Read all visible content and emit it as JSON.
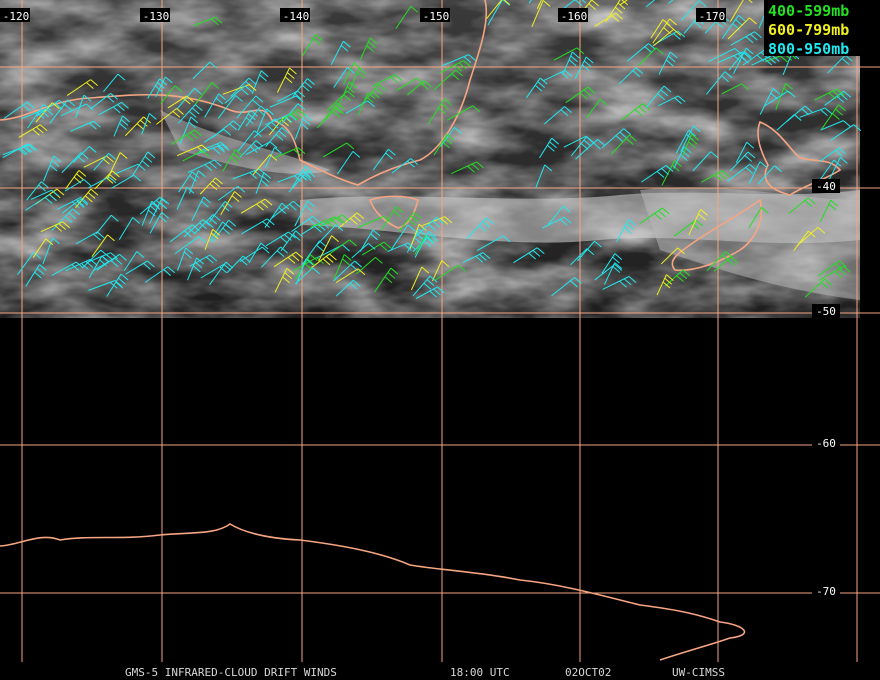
{
  "map": {
    "longitude_labels": [
      "-120",
      "-130",
      "-140",
      "-150",
      "-160",
      "-170"
    ],
    "latitude_labels": [
      "-40",
      "-50",
      "-60",
      "-70"
    ],
    "legend": [
      {
        "label": "400-599mb",
        "color": "#22e022"
      },
      {
        "label": "600-799mb",
        "color": "#f0f020"
      },
      {
        "label": "800-950mb",
        "color": "#20e8f0"
      }
    ],
    "footer": {
      "product": "GMS-5 INFRARED-CLOUD DRIFT WINDS",
      "time": "18:00 UTC",
      "date": "02OCT02",
      "source": "UW-CIMSS"
    }
  }
}
